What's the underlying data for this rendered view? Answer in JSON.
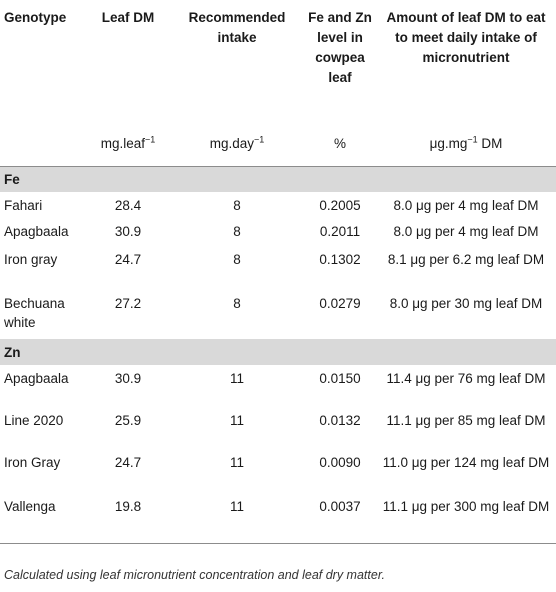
{
  "headers": {
    "genotype": "Genotype",
    "leaf_dm": "Leaf DM",
    "recommended": "Recommended intake",
    "fe_zn": "Fe and Zn level in cowpea leaf",
    "amount": "Amount of leaf DM to eat to meet daily intake of micronutrient"
  },
  "units": {
    "leaf_dm_base": "mg.leaf",
    "leaf_dm_sup": "−1",
    "recommended_base": "mg.day",
    "recommended_sup": "−1",
    "fe_zn": "%",
    "amount_base": "μg.mg",
    "amount_sup": "−1",
    "amount_tail": " DM"
  },
  "sections": {
    "fe": {
      "label": "Fe",
      "rows": [
        {
          "genotype": "Fahari",
          "leaf_dm": "28.4",
          "recommended": "8",
          "level": "0.2005",
          "amount": "8.0 μg per 4 mg leaf DM"
        },
        {
          "genotype": "Apagbaala",
          "leaf_dm": "30.9",
          "recommended": "8",
          "level": "0.2011",
          "amount": "8.0 μg per 4 mg leaf DM"
        },
        {
          "genotype": "Iron gray",
          "leaf_dm": "24.7",
          "recommended": "8",
          "level": "0.1302",
          "amount": "8.1 μg per 6.2 mg leaf DM"
        },
        {
          "genotype": "Bechuana white",
          "leaf_dm": "27.2",
          "recommended": "8",
          "level": "0.0279",
          "amount": "8.0 μg per 30 mg leaf DM"
        }
      ]
    },
    "zn": {
      "label": "Zn",
      "rows": [
        {
          "genotype": "Apagbaala",
          "leaf_dm": "30.9",
          "recommended": "11",
          "level": "0.0150",
          "amount": "11.4 μg per 76 mg leaf DM"
        },
        {
          "genotype": "Line 2020",
          "leaf_dm": "25.9",
          "recommended": "11",
          "level": "0.0132",
          "amount": "11.1 μg per 85 mg leaf DM"
        },
        {
          "genotype": "Iron Gray",
          "leaf_dm": "24.7",
          "recommended": "11",
          "level": "0.0090",
          "amount": "11.0 μg per 124 mg leaf DM"
        },
        {
          "genotype": "Vallenga",
          "leaf_dm": "19.8",
          "recommended": "11",
          "level": "0.0037",
          "amount": "11.1 μg per 300 mg leaf DM"
        }
      ]
    }
  },
  "caption": "Calculated using leaf micronutrient concentration and leaf dry matter."
}
